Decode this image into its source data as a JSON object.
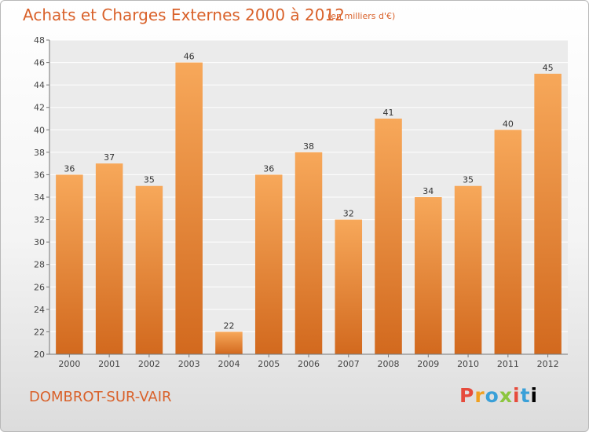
{
  "header": {
    "title": "Achats et Charges Externes 2000 à 2012",
    "unit_note": "(en milliers d'€)"
  },
  "footer": {
    "commune": "DOMBROT-SUR-VAIR",
    "logo_letters": [
      "P",
      "r",
      "o",
      "x",
      "i",
      "t",
      "i"
    ]
  },
  "colors": {
    "bar_top": "#f7a85a",
    "bar_bottom": "#d2691e",
    "accent": "#d9612a",
    "grid": "#ffffff",
    "plot_bg": "#ebebeb"
  },
  "chart_data": {
    "type": "bar",
    "title": "Achats et Charges Externes 2000 à 2012",
    "subtitle": "(en milliers d'€)",
    "categories": [
      "2000",
      "2001",
      "2002",
      "2003",
      "2004",
      "2005",
      "2006",
      "2007",
      "2008",
      "2009",
      "2010",
      "2011",
      "2012"
    ],
    "values": [
      36,
      37,
      35,
      46,
      22,
      36,
      38,
      32,
      41,
      34,
      35,
      40,
      45
    ],
    "ylim": [
      20,
      48
    ],
    "yticks": [
      20,
      22,
      24,
      26,
      28,
      30,
      32,
      34,
      36,
      38,
      40,
      42,
      44,
      46,
      48
    ],
    "xlabel": "",
    "ylabel": "",
    "grid": true,
    "data_labels": true
  }
}
